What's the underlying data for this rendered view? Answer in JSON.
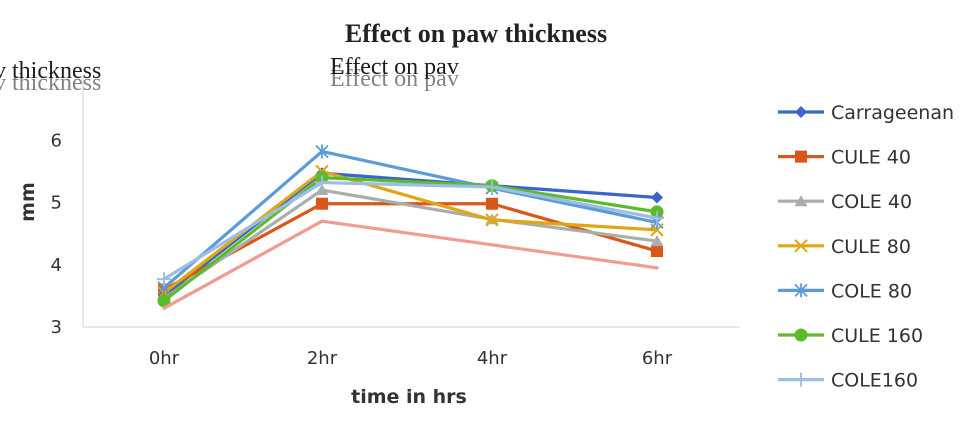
{
  "chart_data": {
    "type": "line",
    "title": "Effect on paw thickness",
    "title_fragments": [
      "Effect on pav",
      "v thickness"
    ],
    "xlabel": "time in hrs",
    "ylabel": "mm",
    "categories": [
      "0hr",
      "2hr",
      "4hr",
      "6hr"
    ],
    "ylim": [
      3,
      7
    ],
    "yticks": [
      "3",
      "4",
      "5",
      "6"
    ],
    "grid": false,
    "legend_position": "right",
    "series": [
      {
        "name": "Carrageenan",
        "color": "#3a66c8",
        "marker": "diamond",
        "values": [
          3.5,
          5.47,
          5.27,
          5.08
        ]
      },
      {
        "name": "CULE 40",
        "color": "#d9571b",
        "marker": "square",
        "values": [
          3.6,
          4.98,
          4.98,
          4.22
        ]
      },
      {
        "name": "COLE 40",
        "color": "#a8aeab",
        "marker": "triangle",
        "values": [
          3.46,
          5.2,
          4.73,
          4.38
        ]
      },
      {
        "name": "CULE 80",
        "color": "#dfa713",
        "marker": "x",
        "values": [
          3.55,
          5.5,
          4.72,
          4.56
        ]
      },
      {
        "name": "COLE 80",
        "color": "#5b9bd9",
        "marker": "star",
        "values": [
          3.63,
          5.82,
          5.23,
          4.68
        ]
      },
      {
        "name": "CULE 160",
        "color": "#5cbb2c",
        "marker": "circle",
        "values": [
          3.42,
          5.4,
          5.27,
          4.85
        ]
      },
      {
        "name": "COLE160",
        "color": "#9dbde4",
        "marker": "plus",
        "values": [
          3.77,
          5.32,
          5.25,
          4.75
        ]
      },
      {
        "name": "",
        "color": "#f09c90",
        "marker": "none",
        "values": [
          3.3,
          4.7,
          4.32,
          3.95
        ]
      }
    ]
  }
}
